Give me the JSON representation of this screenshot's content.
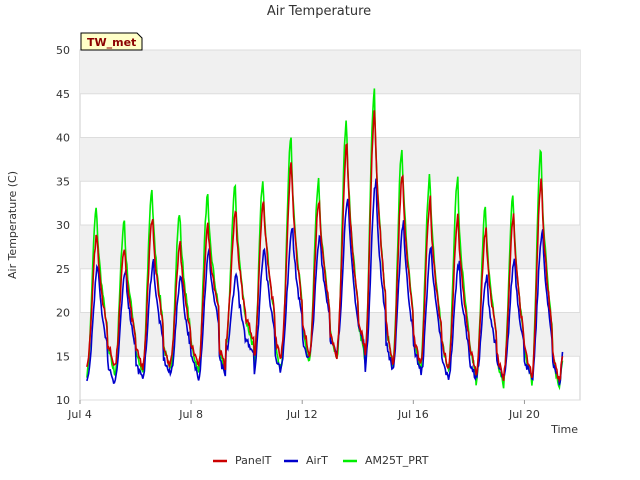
{
  "chart_data": {
    "type": "line",
    "title": "Air Temperature",
    "xlabel": "Time",
    "ylabel": "Air Temperature (C)",
    "site_tag": "TW_met",
    "ylim": [
      10,
      50
    ],
    "yticks": [
      10,
      15,
      20,
      25,
      30,
      35,
      40,
      45,
      50
    ],
    "xlim_days": [
      4.0,
      22.0
    ],
    "xticks": [
      {
        "day": 4,
        "label": "Jul 4"
      },
      {
        "day": 8,
        "label": "Jul 8"
      },
      {
        "day": 12,
        "label": "Jul 12"
      },
      {
        "day": 16,
        "label": "Jul 16"
      },
      {
        "day": 20,
        "label": "Jul 20"
      }
    ],
    "grid": true,
    "legend_position": "bottom",
    "daily_min_max": [
      {
        "day": "Jul 4",
        "PanelT": [
          14.0,
          29.0
        ],
        "AirT": [
          12.0,
          25.3
        ],
        "AM25T_PRT": [
          13.0,
          32.0
        ]
      },
      {
        "day": "Jul 5",
        "PanelT": [
          13.8,
          27.5
        ],
        "AirT": [
          12.3,
          24.8
        ],
        "AM25T_PRT": [
          13.0,
          30.5
        ]
      },
      {
        "day": "Jul 6",
        "PanelT": [
          13.5,
          31.0
        ],
        "AirT": [
          12.8,
          25.9
        ],
        "AM25T_PRT": [
          13.0,
          34.2
        ]
      },
      {
        "day": "Jul 7",
        "PanelT": [
          14.2,
          28.0
        ],
        "AirT": [
          13.0,
          24.5
        ],
        "AM25T_PRT": [
          13.5,
          31.5
        ]
      },
      {
        "day": "Jul 8",
        "PanelT": [
          13.5,
          30.0
        ],
        "AirT": [
          12.5,
          27.0
        ],
        "AM25T_PRT": [
          12.8,
          33.2
        ]
      },
      {
        "day": "Jul 9",
        "PanelT": [
          17.0,
          31.5
        ],
        "AirT": [
          15.5,
          24.5
        ],
        "AM25T_PRT": [
          16.0,
          34.5
        ]
      },
      {
        "day": "Jul 10",
        "PanelT": [
          14.5,
          33.0
        ],
        "AirT": [
          13.2,
          27.7
        ],
        "AM25T_PRT": [
          13.2,
          35.5
        ]
      },
      {
        "day": "Jul 11",
        "PanelT": [
          15.5,
          37.0
        ],
        "AirT": [
          14.5,
          30.0
        ],
        "AM25T_PRT": [
          14.2,
          40.0
        ]
      },
      {
        "day": "Jul 12",
        "PanelT": [
          15.0,
          33.0
        ],
        "AirT": [
          15.0,
          28.8
        ],
        "AM25T_PRT": [
          14.5,
          35.0
        ]
      },
      {
        "day": "Jul 13",
        "PanelT": [
          16.0,
          39.5
        ],
        "AirT": [
          16.0,
          33.5
        ],
        "AM25T_PRT": [
          15.0,
          42.0
        ]
      },
      {
        "day": "Jul 14",
        "PanelT": [
          14.5,
          43.5
        ],
        "AirT": [
          13.5,
          35.0
        ],
        "AM25T_PRT": [
          14.0,
          45.5
        ]
      },
      {
        "day": "Jul 15",
        "PanelT": [
          14.0,
          36.0
        ],
        "AirT": [
          13.5,
          30.5
        ],
        "AM25T_PRT": [
          13.5,
          39.0
        ]
      },
      {
        "day": "Jul 16",
        "PanelT": [
          13.8,
          33.0
        ],
        "AirT": [
          12.5,
          27.7
        ],
        "AM25T_PRT": [
          13.5,
          35.8
        ]
      },
      {
        "day": "Jul 17",
        "PanelT": [
          13.5,
          31.0
        ],
        "AirT": [
          12.5,
          25.7
        ],
        "AM25T_PRT": [
          13.0,
          35.2
        ]
      },
      {
        "day": "Jul 18",
        "PanelT": [
          12.5,
          29.5
        ],
        "AirT": [
          12.5,
          24.0
        ],
        "AM25T_PRT": [
          11.5,
          32.0
        ]
      },
      {
        "day": "Jul 19",
        "PanelT": [
          13.0,
          31.0
        ],
        "AirT": [
          12.5,
          26.2
        ],
        "AM25T_PRT": [
          12.5,
          33.4
        ]
      },
      {
        "day": "Jul 20",
        "PanelT": [
          12.0,
          35.5
        ],
        "AirT": [
          12.0,
          29.5
        ],
        "AM25T_PRT": [
          11.2,
          38.5
        ]
      }
    ],
    "final_values": {
      "PanelT": 15.0,
      "AirT": 15.5,
      "AM25T_PRT": 14.5
    },
    "series": [
      {
        "name": "PanelT",
        "color": "#cc0000"
      },
      {
        "name": "AirT",
        "color": "#0000cc"
      },
      {
        "name": "AM25T_PRT",
        "color": "#00ee00"
      }
    ]
  }
}
